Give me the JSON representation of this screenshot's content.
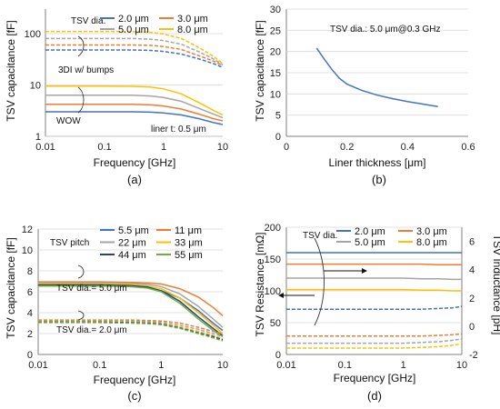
{
  "colors": {
    "blue": "#4472C4",
    "orange": "#ED7D31",
    "gray": "#A5A5A5",
    "gold": "#FFC000",
    "green": "#70AD47",
    "axis": "#7f7f7f",
    "grid": "#d9d9d9"
  },
  "chart_data": [
    {
      "panel": "(a)",
      "type": "line",
      "xscale": "log",
      "yscale": "log",
      "xlabel": "Frequency [GHz]",
      "ylabel": "TSV capacitance [fF]",
      "xlim": [
        0.01,
        10
      ],
      "ylim": [
        1,
        300
      ],
      "x_ticks": [
        "0.01",
        "0.1",
        "1",
        "10"
      ],
      "y_ticks": [
        "1",
        "10",
        "100"
      ],
      "legend_title": "TSV dia.",
      "legend": [
        "2.0 μm",
        "3.0 μm",
        "5.0 μm",
        "8.0 μm"
      ],
      "annotations": [
        "3DI w/ bumps",
        "WOW",
        "liner t: 0.5 μm"
      ],
      "x": [
        0.01,
        0.03,
        0.1,
        0.3,
        0.6,
        1,
        2,
        4,
        7,
        10
      ],
      "series": [
        {
          "name": "2.0 μm",
          "group": "WOW",
          "values": [
            3.0,
            3.0,
            3.0,
            3.0,
            2.95,
            2.85,
            2.6,
            2.2,
            1.85,
            1.7
          ]
        },
        {
          "name": "3.0 μm",
          "group": "WOW",
          "values": [
            4.2,
            4.2,
            4.2,
            4.2,
            4.1,
            3.9,
            3.4,
            2.7,
            2.2,
            2.0
          ]
        },
        {
          "name": "5.0 μm",
          "group": "WOW",
          "values": [
            6.3,
            6.3,
            6.3,
            6.3,
            6.1,
            5.7,
            4.8,
            3.5,
            2.7,
            2.3
          ]
        },
        {
          "name": "8.0 μm",
          "group": "WOW",
          "values": [
            9.5,
            9.5,
            9.5,
            9.4,
            9.1,
            8.4,
            6.7,
            4.5,
            3.2,
            2.6
          ]
        },
        {
          "name": "2.0 μm",
          "group": "3DI w/ bumps",
          "values": [
            48,
            48,
            48,
            48,
            47,
            45,
            40,
            32,
            26,
            22
          ]
        },
        {
          "name": "3.0 μm",
          "group": "3DI w/ bumps",
          "values": [
            60,
            60,
            60,
            60,
            59,
            56,
            49,
            37,
            29,
            24
          ]
        },
        {
          "name": "5.0 μm",
          "group": "3DI w/ bumps",
          "values": [
            80,
            80,
            80,
            80,
            78,
            73,
            62,
            44,
            32,
            25
          ]
        },
        {
          "name": "8.0 μm",
          "group": "3DI w/ bumps",
          "values": [
            110,
            110,
            110,
            109,
            106,
            98,
            80,
            53,
            36,
            26
          ]
        }
      ]
    },
    {
      "panel": "(b)",
      "type": "line",
      "xlabel": "Liner thickness [μm]",
      "ylabel": "TSV capacitance [fF]",
      "xlim": [
        0,
        0.6
      ],
      "ylim": [
        0,
        30
      ],
      "x_ticks": [
        "0",
        "0.2",
        "0.4",
        "0.6"
      ],
      "y_ticks": [
        "0",
        "5",
        "10",
        "15",
        "20",
        "25",
        "30"
      ],
      "annotation": "TSV dia.: 5.0 μm@0.3 GHz",
      "x": [
        0.1,
        0.125,
        0.15,
        0.175,
        0.2,
        0.25,
        0.3,
        0.35,
        0.4,
        0.45,
        0.5
      ],
      "values": [
        20.8,
        18.2,
        15.8,
        13.7,
        12.3,
        10.8,
        9.7,
        8.9,
        8.2,
        7.6,
        7.0
      ]
    },
    {
      "panel": "(c)",
      "type": "line",
      "xscale": "log",
      "xlabel": "Frequency [GHz]",
      "ylabel": "TSV capacitance [fF]",
      "xlim": [
        0.01,
        10
      ],
      "ylim": [
        0,
        12
      ],
      "x_ticks": [
        "0.01",
        "0.1",
        "1",
        "10"
      ],
      "y_ticks": [
        "0",
        "2",
        "4",
        "6",
        "8",
        "10",
        "12"
      ],
      "legend_title": "TSV pitch",
      "legend": [
        "5.5 μm",
        "11 μm",
        "22 μm",
        "33 μm",
        "44 μm",
        "55 μm"
      ],
      "annotations": [
        "TSV dia.= 5.0 μm",
        "TSV dia.= 2.0 μm"
      ],
      "x": [
        0.01,
        0.03,
        0.1,
        0.3,
        0.6,
        1,
        2,
        4,
        7,
        10
      ],
      "series": [
        {
          "name": "5.5 μm",
          "group": "5.0 μm",
          "values": [
            6.6,
            6.6,
            6.6,
            6.55,
            6.4,
            6.1,
            5.4,
            4.2,
            3.0,
            2.3
          ]
        },
        {
          "name": "11 μm",
          "group": "5.0 μm",
          "values": [
            6.95,
            6.95,
            6.95,
            6.9,
            6.85,
            6.75,
            6.3,
            5.5,
            4.5,
            3.7
          ]
        },
        {
          "name": "22 μm",
          "group": "5.0 μm",
          "values": [
            6.85,
            6.85,
            6.85,
            6.8,
            6.7,
            6.5,
            5.8,
            4.6,
            3.4,
            2.6
          ]
        },
        {
          "name": "33 μm",
          "group": "5.0 μm",
          "values": [
            6.75,
            6.75,
            6.75,
            6.7,
            6.55,
            6.3,
            5.4,
            4.0,
            2.8,
            2.0
          ]
        },
        {
          "name": "44 μm",
          "group": "5.0 μm",
          "values": [
            6.65,
            6.65,
            6.65,
            6.6,
            6.45,
            6.1,
            5.1,
            3.6,
            2.5,
            1.8
          ]
        },
        {
          "name": "55 μm",
          "group": "5.0 μm",
          "values": [
            6.55,
            6.55,
            6.55,
            6.5,
            6.35,
            6.0,
            4.9,
            3.4,
            2.3,
            1.7
          ]
        },
        {
          "name": "5.5 μm",
          "group": "2.0 μm",
          "values": [
            3.1,
            3.1,
            3.1,
            3.05,
            3.0,
            2.9,
            2.6,
            2.2,
            1.8,
            1.5
          ]
        },
        {
          "name": "11 μm",
          "group": "2.0 μm",
          "values": [
            3.3,
            3.3,
            3.3,
            3.3,
            3.25,
            3.2,
            3.0,
            2.6,
            2.2,
            2.0
          ]
        },
        {
          "name": "22 μm",
          "group": "2.0 μm",
          "values": [
            3.2,
            3.2,
            3.2,
            3.2,
            3.15,
            3.05,
            2.8,
            2.4,
            2.0,
            1.7
          ]
        },
        {
          "name": "33 μm",
          "group": "2.0 μm",
          "values": [
            3.15,
            3.15,
            3.15,
            3.1,
            3.05,
            2.95,
            2.65,
            2.2,
            1.8,
            1.5
          ]
        },
        {
          "name": "44 μm",
          "group": "2.0 μm",
          "values": [
            3.1,
            3.1,
            3.1,
            3.05,
            3.0,
            2.9,
            2.55,
            2.05,
            1.7,
            1.4
          ]
        },
        {
          "name": "55 μm",
          "group": "2.0 μm",
          "values": [
            3.05,
            3.05,
            3.05,
            3.0,
            2.95,
            2.85,
            2.5,
            2.0,
            1.6,
            1.3
          ]
        }
      ]
    },
    {
      "panel": "(d)",
      "type": "line",
      "xscale": "log",
      "xlabel": "Frequency [GHz]",
      "ylabel": "TSV Resistance [mΩ]",
      "ylabel_right": "TSV Inductance [pH]",
      "xlim": [
        0.01,
        10
      ],
      "ylim": [
        0,
        200
      ],
      "ylim_right": [
        -2,
        7
      ],
      "x_ticks": [
        "0.01",
        "0.1",
        "1",
        "10"
      ],
      "y_ticks": [
        "0",
        "50",
        "100",
        "150",
        "200"
      ],
      "y_ticks_right": [
        "-2",
        "0",
        "2",
        "4",
        "6"
      ],
      "legend_title": "TSV dia.",
      "legend": [
        "2.0 μm",
        "3.0 μm",
        "5.0 μm",
        "8.0 μm"
      ],
      "x": [
        0.01,
        0.03,
        0.1,
        0.3,
        0.6,
        1,
        2,
        4,
        7,
        10
      ],
      "series": [
        {
          "name": "2.0 μm",
          "kind": "resistance",
          "values": [
            160,
            160,
            160,
            160,
            160,
            160,
            160,
            160,
            160,
            160
          ]
        },
        {
          "name": "3.0 μm",
          "kind": "resistance",
          "values": [
            142,
            142,
            142,
            142,
            142,
            142,
            142,
            141,
            141,
            141
          ]
        },
        {
          "name": "5.0 μm",
          "kind": "resistance",
          "values": [
            120,
            120,
            120,
            120,
            120,
            120,
            119,
            119,
            118,
            118
          ]
        },
        {
          "name": "8.0 μm",
          "kind": "resistance",
          "values": [
            102,
            102,
            102,
            102,
            102,
            102,
            101,
            101,
            100,
            100
          ]
        },
        {
          "name": "2.0 μm",
          "kind": "inductance",
          "values": [
            1.2,
            1.2,
            1.2,
            1.2,
            1.2,
            1.2,
            1.2,
            1.25,
            1.3,
            1.4
          ]
        },
        {
          "name": "3.0 μm",
          "kind": "inductance",
          "values": [
            -0.7,
            -0.7,
            -0.7,
            -0.7,
            -0.7,
            -0.7,
            -0.7,
            -0.65,
            -0.6,
            -0.55
          ]
        },
        {
          "name": "5.0 μm",
          "kind": "inductance",
          "values": [
            -1.2,
            -1.2,
            -1.2,
            -1.2,
            -1.2,
            -1.2,
            -1.15,
            -1.1,
            -1.0,
            -0.9
          ]
        },
        {
          "name": "8.0 μm",
          "kind": "inductance",
          "values": [
            -1.55,
            -1.55,
            -1.55,
            -1.55,
            -1.55,
            -1.55,
            -1.5,
            -1.45,
            -1.35,
            -1.25
          ]
        }
      ]
    }
  ]
}
